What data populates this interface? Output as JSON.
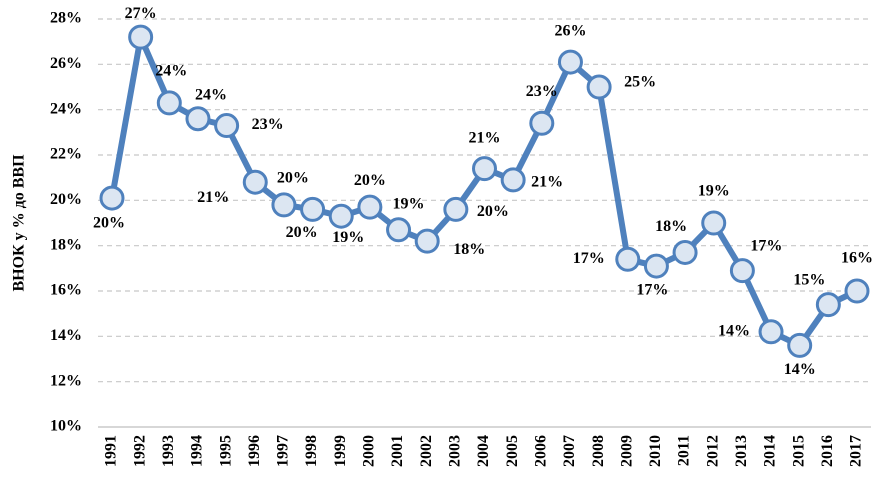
{
  "chart_data": {
    "type": "line",
    "y_label": "ВНОК у % до ВВП",
    "categories": [
      "1991",
      "1992",
      "1993",
      "1994",
      "1995",
      "1996",
      "1997",
      "1998",
      "1999",
      "2000",
      "2001",
      "2002",
      "2003",
      "2004",
      "2005",
      "2006",
      "2007",
      "2008",
      "2009",
      "2010",
      "2011",
      "2012",
      "2013",
      "2014",
      "2015",
      "2016",
      "2017"
    ],
    "series": [
      {
        "name": "ВНОК",
        "color": "#4f81bd",
        "values": [
          20.1,
          27.2,
          24.3,
          23.6,
          23.3,
          20.8,
          19.8,
          19.6,
          19.3,
          19.7,
          18.7,
          18.2,
          19.6,
          21.4,
          20.9,
          23.4,
          26.1,
          25.0,
          17.4,
          17.1,
          17.7,
          19.0,
          16.9,
          14.2,
          13.6,
          15.4,
          16.0
        ],
        "value_labels": [
          "20%",
          "27%",
          "24%",
          "24%",
          "23%",
          "21%",
          "20%",
          "20%",
          "19%",
          "20%",
          "19%",
          "18%",
          "20%",
          "21%",
          "21%",
          "23%",
          "26%",
          "25%",
          "17%",
          "17%",
          "18%",
          "19%",
          "17%",
          "14%",
          "14%",
          "15%",
          "16%"
        ]
      }
    ],
    "ylim": [
      10,
      28
    ],
    "yticks": [
      {
        "value": 10,
        "label": "10%"
      },
      {
        "value": 12,
        "label": "12%"
      },
      {
        "value": 14,
        "label": "14%"
      },
      {
        "value": 16,
        "label": "16%"
      },
      {
        "value": 18,
        "label": "18%"
      },
      {
        "value": 20,
        "label": "20%"
      },
      {
        "value": 22,
        "label": "22%"
      },
      {
        "value": 24,
        "label": "24%"
      },
      {
        "value": 26,
        "label": "26%"
      },
      {
        "value": 28,
        "label": "28%"
      }
    ],
    "grid": true
  }
}
